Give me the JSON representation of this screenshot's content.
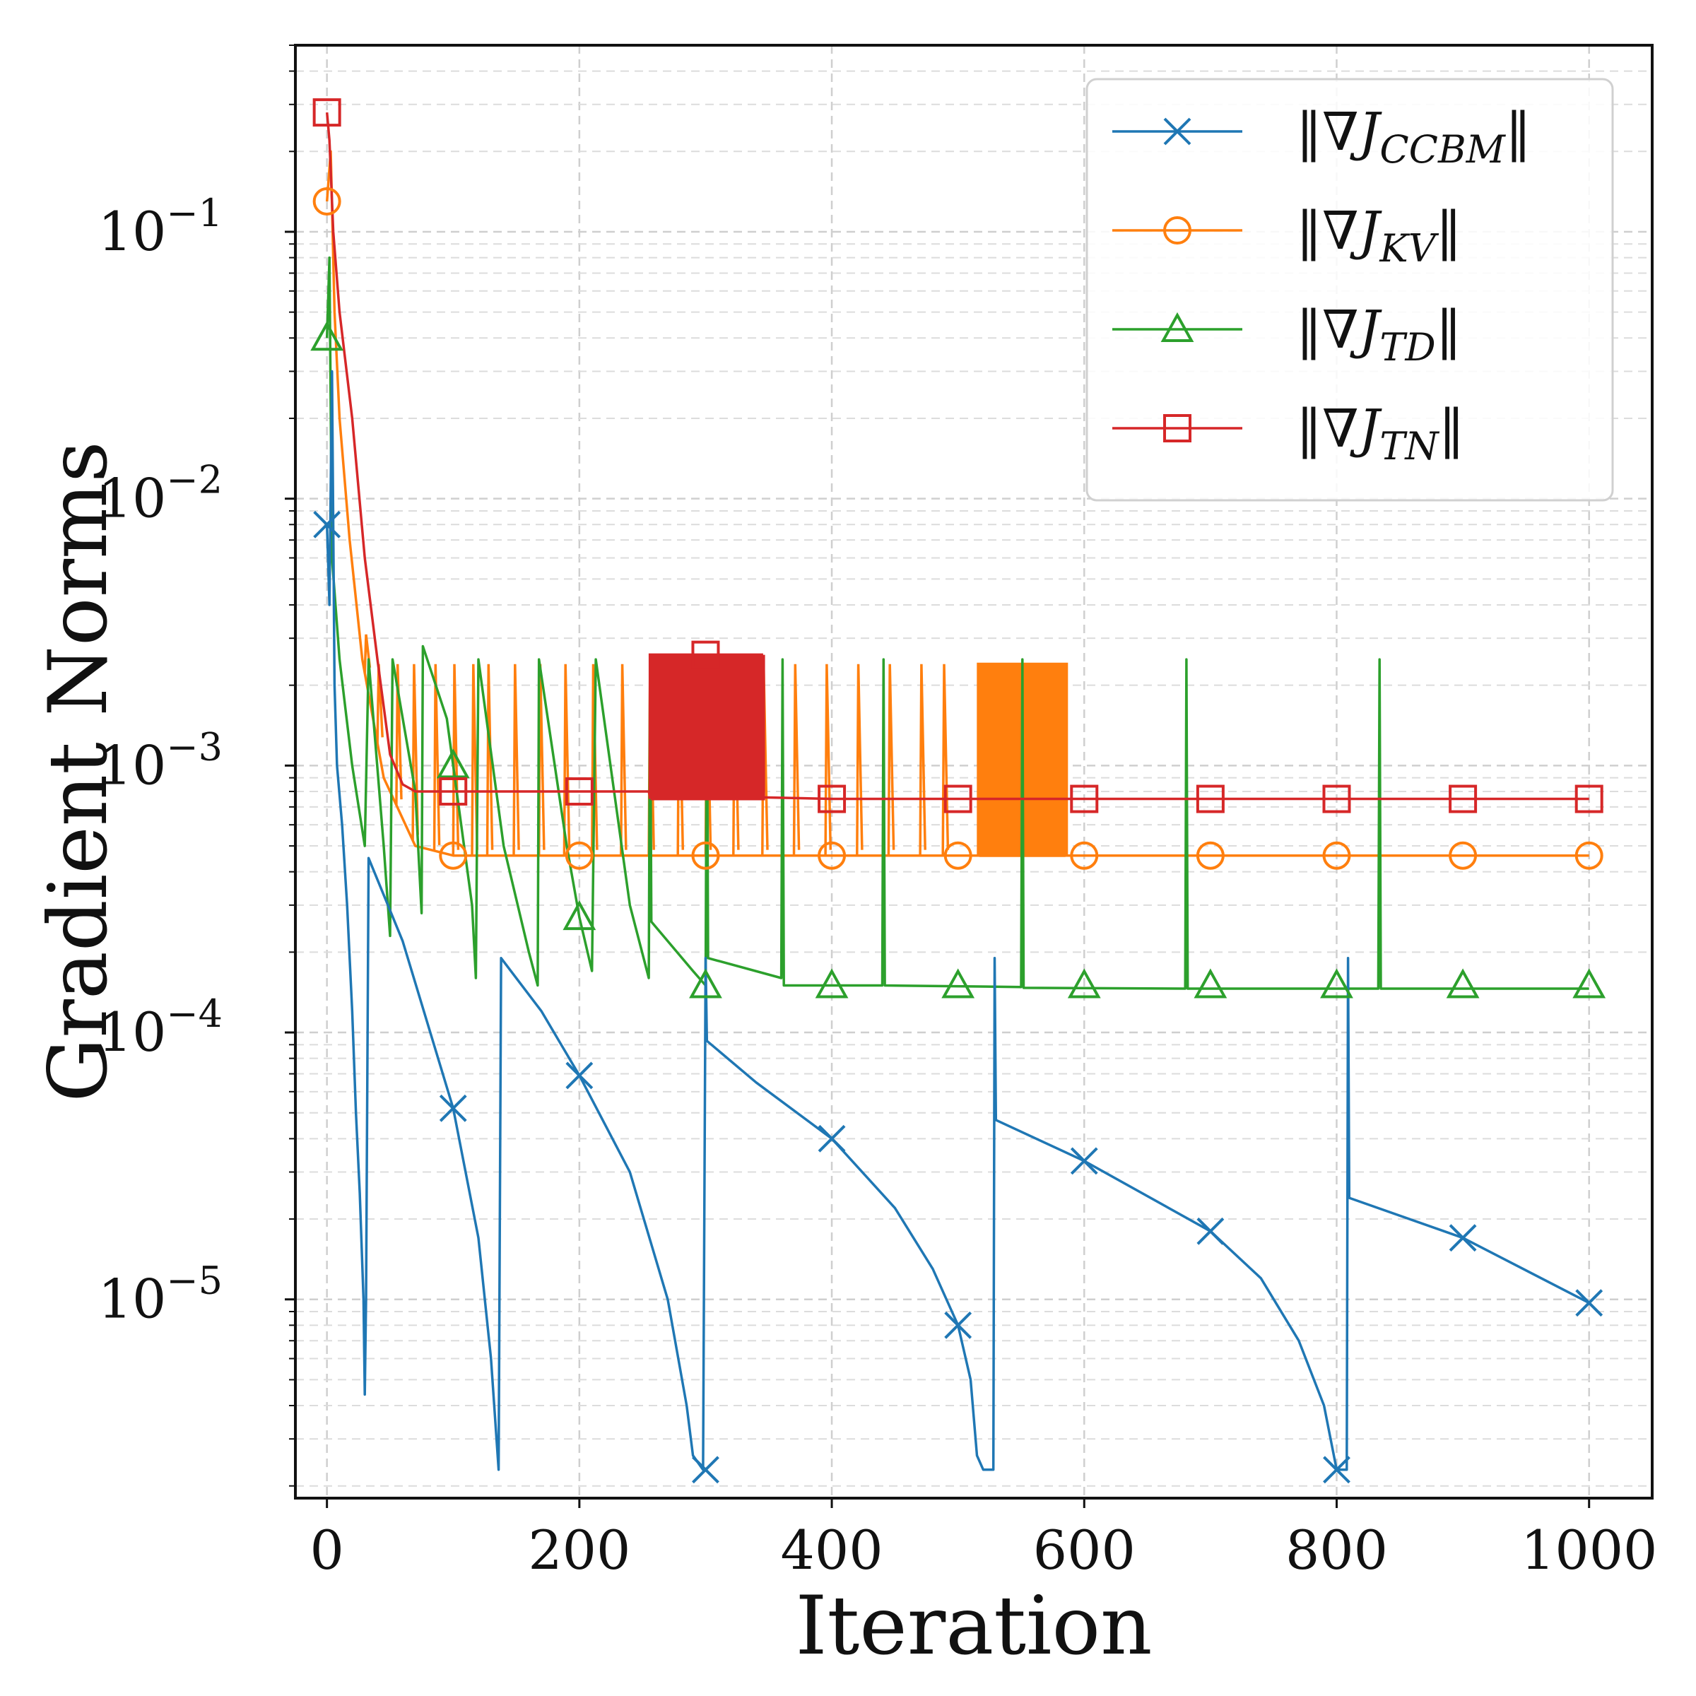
{
  "chart_data": {
    "type": "line",
    "title": "",
    "xlabel": "Iteration",
    "ylabel": "Gradient Norms",
    "yscale": "log",
    "xlim": [
      -25,
      1050
    ],
    "ylim": [
      1.8e-06,
      0.5
    ],
    "grid": true,
    "legend_position": "top-right",
    "xticks": [
      0,
      200,
      400,
      600,
      800,
      1000
    ],
    "xtick_labels": [
      "0",
      "200",
      "400",
      "600",
      "800",
      "1000"
    ],
    "yticks": [
      1e-05,
      0.0001,
      0.001,
      0.01,
      0.1
    ],
    "ytick_labels": [
      {
        "base": "10",
        "exp": "−5"
      },
      {
        "base": "10",
        "exp": "−4"
      },
      {
        "base": "10",
        "exp": "−3"
      },
      {
        "base": "10",
        "exp": "−2"
      },
      {
        "base": "10",
        "exp": "−1"
      }
    ],
    "series": [
      {
        "name": "||∇J_CCBM||",
        "label_main": "‖∇",
        "label_J": "J",
        "label_sub": "CCBM",
        "label_close": "‖",
        "color": "#1f77b4",
        "marker": "x",
        "marker_x": [
          0,
          100,
          200,
          300,
          400,
          500,
          600,
          700,
          800,
          900,
          1000
        ],
        "marker_y": [
          0.008,
          5.2e-05,
          6.9e-05,
          2.3e-06,
          4e-05,
          8e-06,
          3.3e-05,
          1.8e-05,
          2.3e-06,
          1.7e-05,
          9.7e-06
        ],
        "points": [
          [
            0,
            0.008
          ],
          [
            2,
            0.004
          ],
          [
            4,
            0.03
          ],
          [
            6,
            0.002
          ],
          [
            8,
            0.001
          ],
          [
            12,
            0.0006
          ],
          [
            16,
            0.0003
          ],
          [
            20,
            0.00012
          ],
          [
            23,
            5e-05
          ],
          [
            26,
            2.5e-05
          ],
          [
            29,
            1e-05
          ],
          [
            30,
            4.4e-06
          ],
          [
            31,
            1e-05
          ],
          [
            33,
            0.00045
          ],
          [
            60,
            0.00022
          ],
          [
            100,
            5.2e-05
          ],
          [
            120,
            1.7e-05
          ],
          [
            130,
            6e-06
          ],
          [
            136,
            2.3e-06
          ],
          [
            138,
            0.00019
          ],
          [
            170,
            0.00012
          ],
          [
            200,
            6.9e-05
          ],
          [
            240,
            3e-05
          ],
          [
            270,
            1e-05
          ],
          [
            285,
            4e-06
          ],
          [
            290,
            2.6e-06
          ],
          [
            298,
            2.3e-06
          ],
          [
            300,
            0.00019
          ],
          [
            301,
            9.3e-05
          ],
          [
            340,
            6.5e-05
          ],
          [
            400,
            4e-05
          ],
          [
            450,
            2.2e-05
          ],
          [
            480,
            1.3e-05
          ],
          [
            500,
            8e-06
          ],
          [
            510,
            5e-06
          ],
          [
            515,
            2.6e-06
          ],
          [
            520,
            2.3e-06
          ],
          [
            528,
            2.3e-06
          ],
          [
            529,
            0.00019
          ],
          [
            530,
            4.7e-05
          ],
          [
            600,
            3.3e-05
          ],
          [
            700,
            1.8e-05
          ],
          [
            740,
            1.2e-05
          ],
          [
            770,
            7e-06
          ],
          [
            790,
            4e-06
          ],
          [
            800,
            2.3e-06
          ],
          [
            808,
            2.3e-06
          ],
          [
            809,
            0.00019
          ],
          [
            810,
            2.4e-05
          ],
          [
            900,
            1.7e-05
          ],
          [
            1000,
            9.7e-06
          ]
        ]
      },
      {
        "name": "||∇J_KV||",
        "label_main": "‖∇",
        "label_J": "J",
        "label_sub": "KV",
        "label_close": "‖",
        "color": "#ff7f0e",
        "marker": "o",
        "marker_x": [
          0,
          100,
          200,
          300,
          400,
          500,
          600,
          700,
          800,
          900,
          1000
        ],
        "marker_y": [
          0.13,
          0.00046,
          0.00046,
          0.00046,
          0.00046,
          0.00046,
          0.00046,
          0.00046,
          0.00046,
          0.00046,
          0.00046
        ],
        "baseline_decay": [
          [
            0,
            0.13
          ],
          [
            3,
            0.2
          ],
          [
            6,
            0.05
          ],
          [
            10,
            0.02
          ],
          [
            18,
            0.007
          ],
          [
            28,
            0.0025
          ],
          [
            45,
            0.0009
          ],
          [
            70,
            0.0005
          ],
          [
            100,
            0.00046
          ],
          [
            1000,
            0.00046
          ]
        ],
        "spike_x": [
          30,
          40,
          55,
          68,
          85,
          100,
          115,
          127,
          148,
          168,
          188,
          210,
          233,
          255,
          278,
          300,
          322,
          345,
          370,
          395,
          420,
          445,
          470,
          488
        ],
        "spike_top": 0.0024,
        "dense_band": [
          516,
          586
        ],
        "dense_step": 2,
        "dense_top": 0.0024
      },
      {
        "name": "||∇J_TD||",
        "label_main": "‖∇",
        "label_J": "J",
        "label_sub": "TD",
        "label_close": "‖",
        "color": "#2ca02c",
        "marker": "^",
        "marker_x": [
          0,
          100,
          200,
          300,
          400,
          500,
          600,
          700,
          800,
          900,
          1000
        ],
        "marker_y": [
          0.04,
          0.001,
          0.00027,
          0.00015,
          0.00015,
          0.00015,
          0.00015,
          0.00015,
          0.00015,
          0.00015,
          0.00015
        ],
        "points": [
          [
            0,
            0.04
          ],
          [
            2,
            0.08
          ],
          [
            4,
            0.006
          ],
          [
            10,
            0.0025
          ],
          [
            20,
            0.001
          ],
          [
            30,
            0.0005
          ],
          [
            33,
            0.0025
          ],
          [
            45,
            0.0005
          ],
          [
            50,
            0.00023
          ],
          [
            52,
            0.0025
          ],
          [
            70,
            0.0008
          ],
          [
            75,
            0.00028
          ],
          [
            76,
            0.0028
          ],
          [
            95,
            0.0015
          ],
          [
            100,
            0.001
          ],
          [
            115,
            0.0003
          ],
          [
            118,
            0.00016
          ],
          [
            120,
            0.0025
          ],
          [
            140,
            0.0005
          ],
          [
            160,
            0.0002
          ],
          [
            167,
            0.00015
          ],
          [
            168,
            0.0025
          ],
          [
            190,
            0.0005
          ],
          [
            200,
            0.00027
          ],
          [
            210,
            0.00017
          ],
          [
            213,
            0.0025
          ],
          [
            240,
            0.0003
          ],
          [
            255,
            0.00016
          ],
          [
            256,
            0.0025
          ],
          [
            257,
            0.00026
          ],
          [
            290,
            0.00017
          ],
          [
            300,
            0.00015
          ],
          [
            301,
            0.0025
          ],
          [
            302,
            0.00019
          ],
          [
            360,
            0.00016
          ],
          [
            361,
            0.0025
          ],
          [
            362,
            0.00015
          ],
          [
            440,
            0.00015
          ],
          [
            441,
            0.0025
          ],
          [
            442,
            0.00015
          ],
          [
            550,
            0.000148
          ],
          [
            551,
            0.0025
          ],
          [
            552,
            0.000147
          ],
          [
            680,
            0.000146
          ],
          [
            681,
            0.0025
          ],
          [
            682,
            0.000146
          ],
          [
            833,
            0.000146
          ],
          [
            834,
            0.0025
          ],
          [
            835,
            0.000146
          ],
          [
            1000,
            0.000146
          ]
        ]
      },
      {
        "name": "||∇J_TN||",
        "label_main": "‖∇",
        "label_J": "J",
        "label_sub": "TN",
        "label_close": "‖",
        "color": "#d62728",
        "marker": "s",
        "marker_x": [
          0,
          100,
          200,
          300,
          400,
          500,
          600,
          700,
          800,
          900,
          1000
        ],
        "marker_y": [
          0.28,
          0.0008,
          0.0008,
          0.0026,
          0.00075,
          0.00075,
          0.00075,
          0.00075,
          0.00075,
          0.00075,
          0.00075
        ],
        "points": [
          [
            0,
            0.28
          ],
          [
            2,
            0.22
          ],
          [
            5,
            0.1
          ],
          [
            10,
            0.05
          ],
          [
            20,
            0.02
          ],
          [
            30,
            0.006
          ],
          [
            40,
            0.0025
          ],
          [
            50,
            0.0011
          ],
          [
            60,
            0.00085
          ],
          [
            70,
            0.0008
          ],
          [
            255,
            0.0008
          ],
          [
            256,
            0.00076
          ],
          [
            346,
            0.00076
          ],
          [
            400,
            0.00075
          ],
          [
            1000,
            0.00075
          ]
        ],
        "dense_band": [
          256,
          346
        ],
        "dense_step": 1.5,
        "dense_top": 0.0026,
        "dense_bottom": 0.00075
      }
    ]
  }
}
